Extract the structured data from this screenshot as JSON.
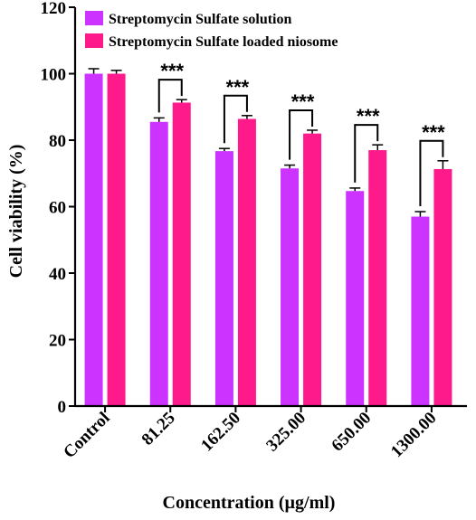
{
  "chart_data": {
    "type": "bar",
    "title": "",
    "xlabel": "Concentration (µg/ml)",
    "ylabel": "Cell viability (%)",
    "ylim": [
      0,
      120
    ],
    "yticks": [
      "0",
      "20",
      "40",
      "60",
      "80",
      "100",
      "120"
    ],
    "categories": [
      "Control",
      "81.25",
      "162.50",
      "325.00",
      "650.00",
      "1300.00"
    ],
    "series": [
      {
        "name": "Streptomycin Sulfate solution",
        "color": "#cc33ff",
        "values": [
          100,
          85.5,
          76.7,
          71.5,
          64.7,
          57
        ],
        "errors": [
          1.5,
          1.2,
          0.8,
          1.0,
          0.9,
          1.5
        ]
      },
      {
        "name": "Streptomycin Sulfate loaded niosome",
        "color": "#ff1a8c",
        "values": [
          100,
          91.3,
          86.4,
          82,
          77,
          71.3
        ],
        "errors": [
          1.0,
          0.9,
          1.0,
          1.0,
          1.6,
          2.5
        ]
      }
    ],
    "significance": [
      {
        "category": "81.25",
        "label": "***"
      },
      {
        "category": "162.50",
        "label": "***"
      },
      {
        "category": "325.00",
        "label": "***"
      },
      {
        "category": "650.00",
        "label": "***"
      },
      {
        "category": "1300.00",
        "label": "***"
      }
    ],
    "legend_position": "top-left",
    "grid": false
  }
}
